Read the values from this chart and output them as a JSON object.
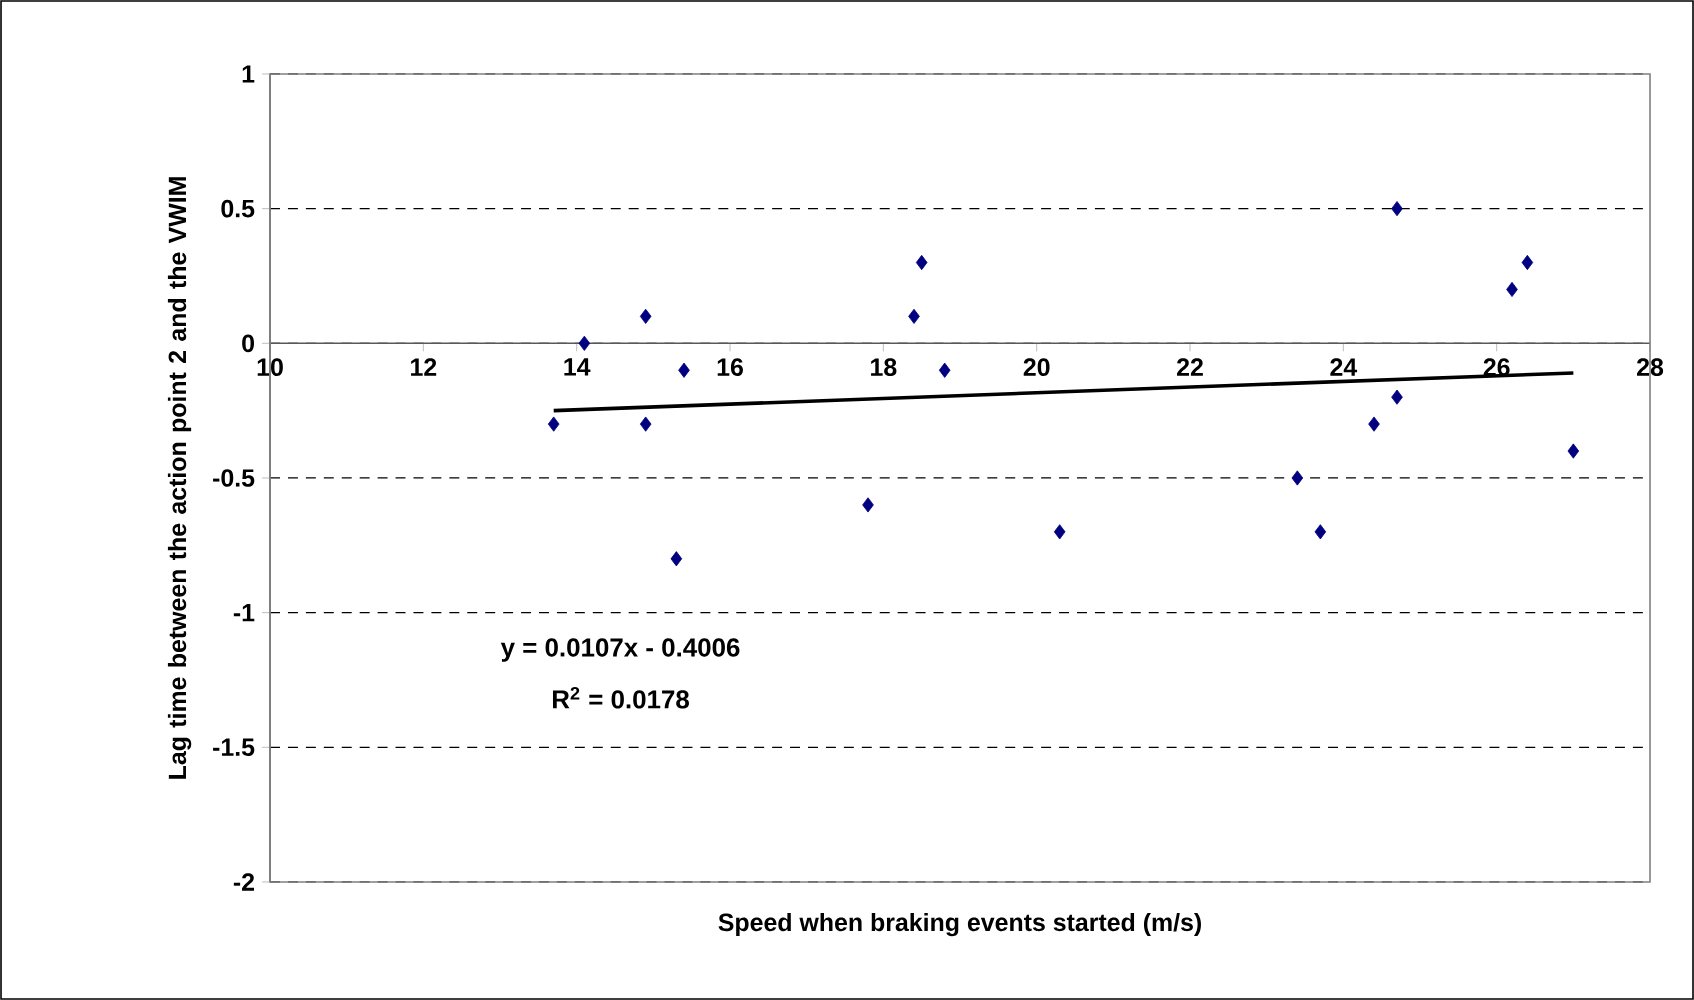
{
  "chart_data": {
    "type": "scatter",
    "xlabel": "Speed when braking events started (m/s)",
    "ylabel": "Lag time between the action point 2 and the VWIM",
    "xlim": [
      10,
      28
    ],
    "xticks": [
      10,
      12,
      14,
      16,
      18,
      20,
      22,
      24,
      26,
      28
    ],
    "ylim": [
      -2,
      1
    ],
    "yticks": [
      -2,
      -1.5,
      -1,
      -0.5,
      0,
      0.5,
      1
    ],
    "grid": "y",
    "legend": false,
    "marker": "diamond",
    "annotations": [
      "y = 0.0107x - 0.4006",
      "R$^{2}$ = 0.0178"
    ],
    "series": [
      {
        "color": "#000080",
        "x": [
          13.7,
          14.1,
          14.9,
          14.9,
          15.4,
          15.3,
          17.8,
          18.5,
          18.4,
          18.8,
          20.3,
          23.4,
          23.7,
          24.4,
          24.7,
          24.7,
          26.2,
          26.4,
          27.0
        ],
        "values": [
          -0.3,
          0,
          0.1,
          -0.3,
          -0.1,
          -0.8,
          -0.6,
          0.3,
          0.1,
          -0.1,
          -0.7,
          -0.5,
          -0.7,
          -0.3,
          0.5,
          -0.2,
          0.2,
          0.3,
          -0.4
        ]
      },
      {
        "type": "line",
        "color": "#000000",
        "marker": "none",
        "x": [
          13.7,
          27.0
        ],
        "values": [
          -0.25,
          -0.11
        ]
      }
    ]
  }
}
